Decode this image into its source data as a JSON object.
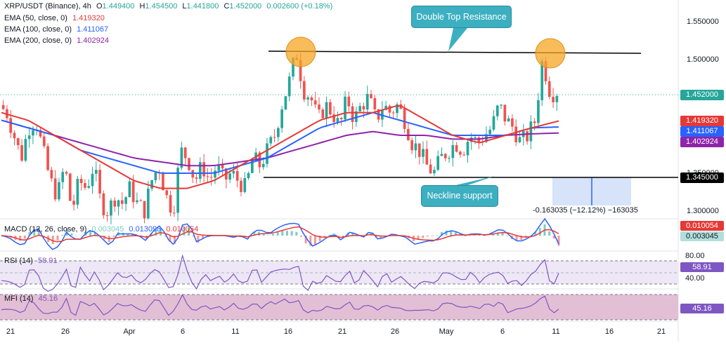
{
  "header": {
    "symbol": "XRP/USDT (Binance), 4h",
    "o_label": "O",
    "o_value": "1.449400",
    "h_label": "H",
    "h_value": "1.454500",
    "l_label": "L",
    "l_value": "1.441800",
    "c_label": "C",
    "c_value": "1.452000",
    "change": "0.002600 (+0.18%)",
    "ema50_label": "EMA (50, close, 0)",
    "ema50_value": "1.419320",
    "ema100_label": "EMA (100, close, 0)",
    "ema100_value": "1.411067",
    "ema200_label": "EMA (200, close, 0)",
    "ema200_value": "1.402924"
  },
  "annotations": {
    "double_top": "Double Top Resistance",
    "neckline": "Neckline support",
    "measure": "-0.163035 (−12.12%) −163035"
  },
  "price_axis": {
    "ticks": [
      "1.550000",
      "1.500000",
      "1.350000",
      "1.300000"
    ],
    "current_price": "1.452000",
    "ema50_tag": "1.419320",
    "ema100_tag": "1.411067",
    "ema200_tag": "1.402924",
    "neckline_tag": "1.345000"
  },
  "macd": {
    "label": "MACD (12, 26, close, 9)",
    "hist": "0.003045",
    "macd": "0.013098",
    "signal": "0.010054",
    "tag_signal": "0.010054",
    "tag_hist": "0.003045"
  },
  "rsi": {
    "label": "RSI (14)",
    "value": "58.91",
    "tag": "58.91",
    "upper": "80.00",
    "lower": "40.00"
  },
  "mfi": {
    "label": "MFI (14)",
    "value": "45.16",
    "tag": "45.16"
  },
  "time_axis": [
    "21",
    "26",
    "Apr",
    "6",
    "11",
    "16",
    "21",
    "26",
    "May",
    "6",
    "11",
    "16",
    "21"
  ],
  "colors": {
    "up": "#26a69a",
    "down": "#ef5350",
    "ema50": "#e53935",
    "ema100": "#2962ff",
    "ema200": "#8e24aa",
    "callout": "#3cafc0",
    "circle": "#f5a623"
  },
  "chart_data": {
    "type": "candlestick",
    "timeframe": "4h",
    "ylim": [
      1.28,
      1.57
    ],
    "close_path": [
      1.44,
      1.43,
      1.4,
      1.37,
      1.41,
      1.42,
      1.38,
      1.34,
      1.32,
      1.36,
      1.3,
      1.34,
      1.33,
      1.36,
      1.31,
      1.3,
      1.32,
      1.31,
      1.33,
      1.31,
      1.3,
      1.34,
      1.36,
      1.32,
      1.3,
      1.38,
      1.37,
      1.34,
      1.36,
      1.34,
      1.36,
      1.34,
      1.35,
      1.34,
      1.33,
      1.37,
      1.36,
      1.38,
      1.4,
      1.44,
      1.47,
      1.51,
      1.46,
      1.45,
      1.42,
      1.44,
      1.43,
      1.41,
      1.45,
      1.42,
      1.44,
      1.45,
      1.42,
      1.44,
      1.43,
      1.44,
      1.42,
      1.39,
      1.38,
      1.36,
      1.35,
      1.37,
      1.38,
      1.39,
      1.38,
      1.4,
      1.39,
      1.4,
      1.41,
      1.44,
      1.42,
      1.41,
      1.39,
      1.4,
      1.42,
      1.5,
      1.46,
      1.452
    ],
    "ema50_path": [
      1.43,
      1.42,
      1.4,
      1.38,
      1.36,
      1.34,
      1.33,
      1.33,
      1.34,
      1.36,
      1.38,
      1.4,
      1.42,
      1.43,
      1.43,
      1.44,
      1.42,
      1.4,
      1.39,
      1.4,
      1.41,
      1.419
    ],
    "ema100_path": [
      1.42,
      1.41,
      1.4,
      1.38,
      1.37,
      1.36,
      1.35,
      1.35,
      1.35,
      1.36,
      1.37,
      1.39,
      1.41,
      1.42,
      1.43,
      1.42,
      1.41,
      1.4,
      1.4,
      1.4,
      1.41,
      1.411
    ],
    "ema200_path": [
      1.42,
      1.41,
      1.4,
      1.39,
      1.38,
      1.37,
      1.365,
      1.36,
      1.36,
      1.365,
      1.37,
      1.38,
      1.39,
      1.4,
      1.405,
      1.4,
      1.4,
      1.395,
      1.395,
      1.4,
      1.402,
      1.403
    ],
    "resistance": 1.507,
    "neckline": 1.345,
    "target_move": -0.163035,
    "target_move_pct": -12.12
  }
}
